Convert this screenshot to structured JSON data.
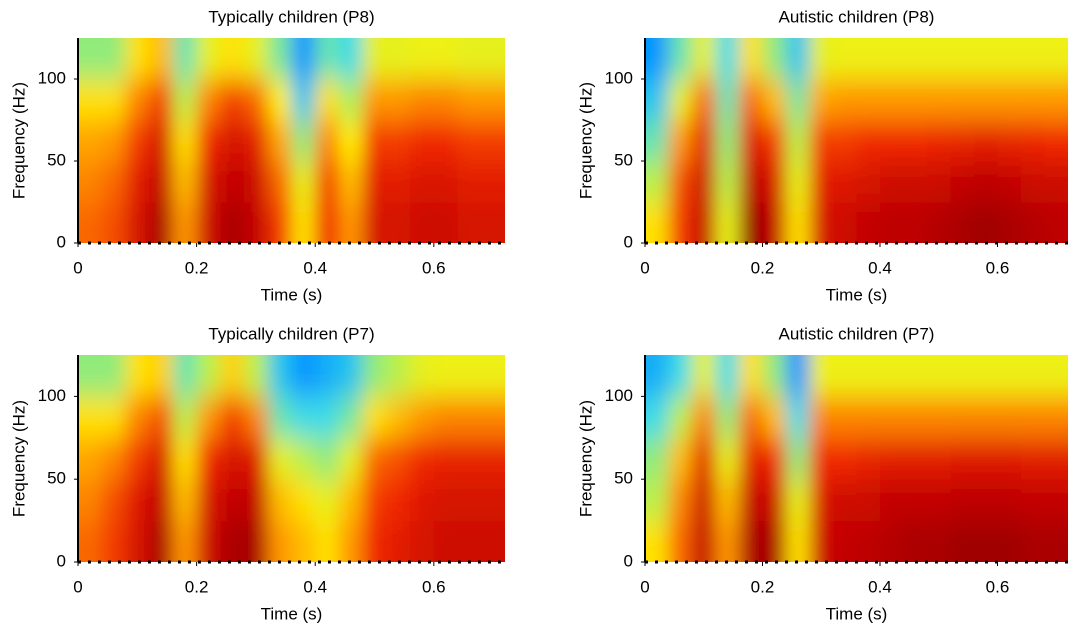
{
  "chart_data": [
    {
      "type": "heatmap",
      "title": "Typically children (P8)",
      "x_label": "Time (s)",
      "y_label": "Frequency (Hz)",
      "xlim": [
        0,
        0.72
      ],
      "ylim": [
        0,
        125
      ],
      "xticks": [
        0,
        0.2,
        0.4,
        0.6
      ],
      "yticks": [
        0,
        50,
        100
      ],
      "x": [
        0.02,
        0.06,
        0.1,
        0.14,
        0.18,
        0.22,
        0.26,
        0.3,
        0.34,
        0.38,
        0.42,
        0.46,
        0.5,
        0.54,
        0.58,
        0.62,
        0.66,
        0.7
      ],
      "y": [
        12.5,
        37.5,
        62.5,
        87.5,
        112.5
      ],
      "z": [
        [
          0.75,
          0.78,
          0.88,
          0.95,
          0.7,
          0.9,
          0.95,
          0.92,
          0.8,
          0.6,
          0.82,
          0.7,
          0.88,
          0.88,
          0.9,
          0.9,
          0.88,
          0.88
        ],
        [
          0.72,
          0.75,
          0.85,
          0.92,
          0.65,
          0.88,
          0.92,
          0.9,
          0.75,
          0.55,
          0.8,
          0.65,
          0.85,
          0.85,
          0.87,
          0.87,
          0.85,
          0.85
        ],
        [
          0.68,
          0.7,
          0.8,
          0.88,
          0.6,
          0.82,
          0.88,
          0.85,
          0.68,
          0.45,
          0.72,
          0.58,
          0.8,
          0.8,
          0.82,
          0.82,
          0.8,
          0.8
        ],
        [
          0.6,
          0.6,
          0.72,
          0.8,
          0.5,
          0.72,
          0.8,
          0.75,
          0.58,
          0.3,
          0.6,
          0.48,
          0.7,
          0.7,
          0.72,
          0.72,
          0.7,
          0.7
        ],
        [
          0.45,
          0.45,
          0.6,
          0.65,
          0.4,
          0.55,
          0.6,
          0.55,
          0.42,
          0.2,
          0.4,
          0.35,
          0.55,
          0.55,
          0.56,
          0.56,
          0.55,
          0.55
        ]
      ]
    },
    {
      "type": "heatmap",
      "title": "Autistic children (P8)",
      "x_label": "Time (s)",
      "y_label": "Frequency (Hz)",
      "xlim": [
        0,
        0.72
      ],
      "ylim": [
        0,
        125
      ],
      "xticks": [
        0,
        0.2,
        0.4,
        0.6
      ],
      "yticks": [
        0,
        50,
        100
      ],
      "x": [
        0.02,
        0.06,
        0.1,
        0.14,
        0.18,
        0.22,
        0.26,
        0.3,
        0.34,
        0.38,
        0.42,
        0.46,
        0.5,
        0.54,
        0.58,
        0.62,
        0.66,
        0.7
      ],
      "y": [
        12.5,
        37.5,
        62.5,
        87.5,
        112.5
      ],
      "z": [
        [
          0.6,
          0.8,
          0.92,
          0.55,
          0.97,
          0.92,
          0.6,
          0.88,
          0.9,
          0.92,
          0.93,
          0.93,
          0.94,
          0.95,
          0.96,
          0.95,
          0.94,
          0.93
        ],
        [
          0.5,
          0.78,
          0.9,
          0.5,
          0.93,
          0.88,
          0.55,
          0.85,
          0.86,
          0.88,
          0.9,
          0.9,
          0.9,
          0.92,
          0.93,
          0.92,
          0.9,
          0.9
        ],
        [
          0.4,
          0.7,
          0.85,
          0.45,
          0.86,
          0.8,
          0.5,
          0.8,
          0.8,
          0.82,
          0.82,
          0.82,
          0.83,
          0.84,
          0.85,
          0.84,
          0.83,
          0.82
        ],
        [
          0.3,
          0.55,
          0.75,
          0.4,
          0.75,
          0.65,
          0.42,
          0.68,
          0.7,
          0.7,
          0.7,
          0.7,
          0.7,
          0.7,
          0.7,
          0.7,
          0.7,
          0.7
        ],
        [
          0.2,
          0.4,
          0.55,
          0.35,
          0.6,
          0.45,
          0.3,
          0.55,
          0.56,
          0.56,
          0.56,
          0.56,
          0.56,
          0.56,
          0.56,
          0.56,
          0.56,
          0.56
        ]
      ]
    },
    {
      "type": "heatmap",
      "title": "Typically children (P7)",
      "x_label": "Time (s)",
      "y_label": "Frequency (Hz)",
      "xlim": [
        0,
        0.72
      ],
      "ylim": [
        0,
        125
      ],
      "xticks": [
        0,
        0.2,
        0.4,
        0.6
      ],
      "yticks": [
        0,
        50,
        100
      ],
      "x": [
        0.02,
        0.06,
        0.1,
        0.14,
        0.18,
        0.22,
        0.26,
        0.3,
        0.34,
        0.38,
        0.42,
        0.46,
        0.5,
        0.54,
        0.58,
        0.62,
        0.66,
        0.7
      ],
      "y": [
        12.5,
        37.5,
        62.5,
        87.5,
        112.5
      ],
      "z": [
        [
          0.75,
          0.8,
          0.88,
          0.95,
          0.7,
          0.9,
          0.95,
          0.95,
          0.7,
          0.65,
          0.6,
          0.7,
          0.82,
          0.85,
          0.88,
          0.9,
          0.9,
          0.9
        ],
        [
          0.72,
          0.78,
          0.86,
          0.92,
          0.65,
          0.88,
          0.92,
          0.92,
          0.65,
          0.6,
          0.55,
          0.65,
          0.8,
          0.82,
          0.86,
          0.88,
          0.88,
          0.88
        ],
        [
          0.68,
          0.72,
          0.8,
          0.88,
          0.6,
          0.82,
          0.88,
          0.86,
          0.55,
          0.5,
          0.45,
          0.55,
          0.75,
          0.78,
          0.82,
          0.84,
          0.84,
          0.84
        ],
        [
          0.6,
          0.6,
          0.72,
          0.78,
          0.5,
          0.7,
          0.8,
          0.72,
          0.4,
          0.35,
          0.35,
          0.42,
          0.6,
          0.65,
          0.7,
          0.72,
          0.72,
          0.72
        ],
        [
          0.45,
          0.45,
          0.6,
          0.62,
          0.4,
          0.5,
          0.62,
          0.5,
          0.3,
          0.2,
          0.25,
          0.3,
          0.45,
          0.5,
          0.55,
          0.56,
          0.56,
          0.56
        ]
      ]
    },
    {
      "type": "heatmap",
      "title": "Autistic children (P7)",
      "x_label": "Time (s)",
      "y_label": "Frequency (Hz)",
      "xlim": [
        0,
        0.72
      ],
      "ylim": [
        0,
        125
      ],
      "xticks": [
        0,
        0.2,
        0.4,
        0.6
      ],
      "yticks": [
        0,
        50,
        100
      ],
      "x": [
        0.02,
        0.06,
        0.1,
        0.14,
        0.18,
        0.22,
        0.26,
        0.3,
        0.34,
        0.38,
        0.42,
        0.46,
        0.5,
        0.54,
        0.58,
        0.62,
        0.66,
        0.7
      ],
      "y": [
        12.5,
        37.5,
        62.5,
        87.5,
        112.5
      ],
      "z": [
        [
          0.6,
          0.75,
          0.92,
          0.7,
          0.95,
          0.95,
          0.6,
          0.9,
          0.92,
          0.93,
          0.94,
          0.95,
          0.95,
          0.96,
          0.96,
          0.96,
          0.95,
          0.95
        ],
        [
          0.5,
          0.72,
          0.9,
          0.65,
          0.92,
          0.9,
          0.55,
          0.87,
          0.9,
          0.9,
          0.92,
          0.92,
          0.92,
          0.93,
          0.93,
          0.93,
          0.92,
          0.92
        ],
        [
          0.45,
          0.65,
          0.85,
          0.55,
          0.85,
          0.82,
          0.45,
          0.82,
          0.82,
          0.84,
          0.85,
          0.85,
          0.85,
          0.86,
          0.86,
          0.86,
          0.85,
          0.85
        ],
        [
          0.35,
          0.5,
          0.72,
          0.45,
          0.75,
          0.65,
          0.35,
          0.72,
          0.72,
          0.72,
          0.72,
          0.72,
          0.72,
          0.72,
          0.72,
          0.72,
          0.72,
          0.72
        ],
        [
          0.25,
          0.35,
          0.55,
          0.35,
          0.6,
          0.45,
          0.2,
          0.56,
          0.56,
          0.56,
          0.56,
          0.56,
          0.56,
          0.56,
          0.56,
          0.56,
          0.56,
          0.56
        ]
      ]
    }
  ]
}
